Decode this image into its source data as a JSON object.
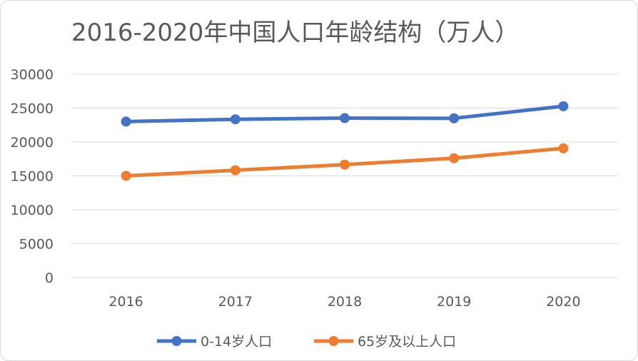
{
  "chart_data": {
    "type": "line",
    "title": "2016-2020年中国人口年龄结构（万人）",
    "xlabel": "",
    "ylabel": "",
    "categories": [
      "2016",
      "2017",
      "2018",
      "2019",
      "2020"
    ],
    "ylim": [
      0,
      30000
    ],
    "yticks": [
      "0",
      "5000",
      "10000",
      "15000",
      "20000",
      "25000",
      "30000"
    ],
    "grid": true,
    "legend_position": "bottom",
    "series": [
      {
        "name": "0-14岁人口",
        "color": "#4472C4",
        "values": [
          23008,
          23348,
          23523,
          23492,
          25277
        ]
      },
      {
        "name": "65岁及以上人口",
        "color": "#ED7D31",
        "values": [
          15003,
          15831,
          16658,
          17603,
          19064
        ]
      }
    ]
  }
}
